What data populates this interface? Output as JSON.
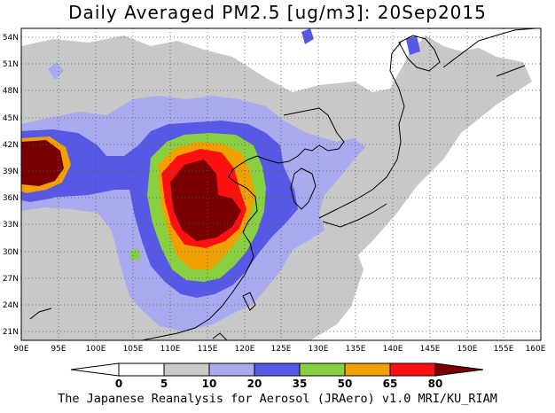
{
  "title": "Daily Averaged PM2.5 [ug/m3]: 20Sep2015",
  "credit": "The Japanese Reanalysis for Aerosol (JRAero) v1.0 MRI/KU_RIAM",
  "map": {
    "lon_range": [
      90,
      160
    ],
    "lat_range": [
      20,
      55
    ],
    "lon_ticks": [
      "90E",
      "95E",
      "100E",
      "105E",
      "110E",
      "115E",
      "120E",
      "125E",
      "130E",
      "135E",
      "140E",
      "145E",
      "150E",
      "155E",
      "160E"
    ],
    "lat_ticks": [
      "21N",
      "24N",
      "27N",
      "30N",
      "33N",
      "36N",
      "39N",
      "42N",
      "45N",
      "48N",
      "51N",
      "54N"
    ],
    "grid": true
  },
  "colorbar": {
    "labels": [
      "0",
      "5",
      "10",
      "20",
      "35",
      "50",
      "65",
      "80"
    ],
    "colors": [
      "#ffffff",
      "#c8c8c8",
      "#aaaaf0",
      "#5858e6",
      "#88d040",
      "#f0a000",
      "#ff1010",
      "#780000"
    ],
    "arrows": true
  }
}
